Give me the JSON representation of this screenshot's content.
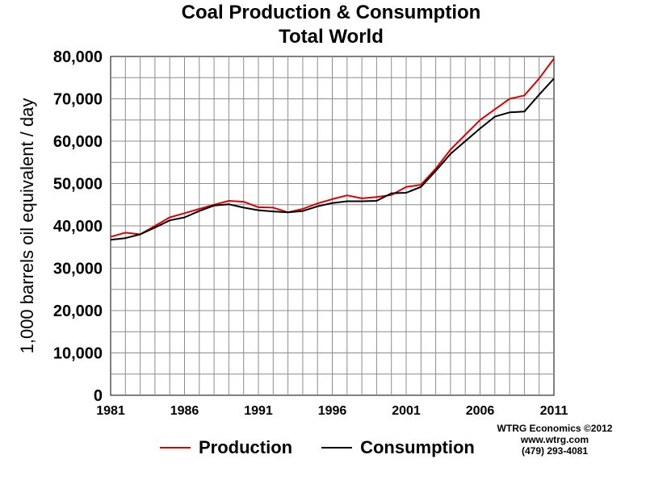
{
  "chart_data": {
    "type": "line",
    "title": "Coal Production & Consumption",
    "subtitle": "Total World",
    "ylabel": "1,000 barrels oil equivalent / day",
    "xlabel": "",
    "xlim": [
      1981,
      2011
    ],
    "ylim": [
      0,
      80000
    ],
    "x_ticks": [
      "1981",
      "1986",
      "1991",
      "1996",
      "2001",
      "2006",
      "2011"
    ],
    "y_ticks": [
      "0",
      "10,000",
      "20,000",
      "30,000",
      "40,000",
      "50,000",
      "60,000",
      "70,000",
      "80,000"
    ],
    "grid": true,
    "legend_position": "bottom",
    "x": [
      1981,
      1982,
      1983,
      1984,
      1985,
      1986,
      1987,
      1988,
      1989,
      1990,
      1991,
      1992,
      1993,
      1994,
      1995,
      1996,
      1997,
      1998,
      1999,
      2000,
      2001,
      2002,
      2003,
      2004,
      2005,
      2006,
      2007,
      2008,
      2009,
      2010,
      2011
    ],
    "series": [
      {
        "name": "Production",
        "color": "#dd0000",
        "values": [
          37400,
          38400,
          38000,
          40000,
          42000,
          43000,
          44000,
          45000,
          45900,
          45700,
          44400,
          44300,
          43200,
          44000,
          45300,
          46300,
          47200,
          46500,
          46800,
          47300,
          49200,
          49700,
          53500,
          58000,
          61500,
          65000,
          67500,
          70000,
          70800,
          74800,
          79500
        ]
      },
      {
        "name": "Consumption",
        "color": "#000000",
        "values": [
          36700,
          37100,
          38000,
          39600,
          41300,
          42000,
          43500,
          44800,
          45100,
          44300,
          43700,
          43400,
          43200,
          43500,
          44600,
          45400,
          45800,
          45800,
          45900,
          47700,
          47800,
          49200,
          53000,
          57000,
          60000,
          63000,
          65800,
          66800,
          67000,
          71000,
          74800
        ]
      }
    ]
  },
  "legend": {
    "production": "Production",
    "consumption": "Consumption"
  },
  "credit": {
    "line1": "WTRG Economics  ©2012",
    "line2": "www.wtrg.com",
    "line3": "(479) 293-4081"
  }
}
